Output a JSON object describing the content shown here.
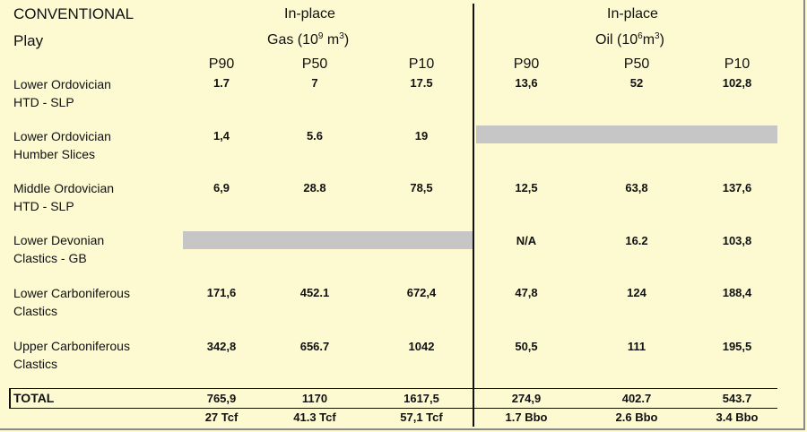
{
  "header": {
    "category": "CONVENTIONAL",
    "play_label": "Play",
    "gas_title": "In-place",
    "gas_unit_prefix": "Gas (10",
    "gas_unit_exp": "9",
    "gas_unit_mid": " m",
    "gas_unit_exp2": "3",
    "gas_unit_suffix": ")",
    "oil_title": "In-place",
    "oil_unit_prefix": "Oil (10",
    "oil_unit_exp": "6",
    "oil_unit_mid": "m",
    "oil_unit_exp2": "3",
    "oil_unit_suffix": ")",
    "columns": [
      "P90",
      "P50",
      "P10",
      "P90",
      "P50",
      "P10"
    ]
  },
  "rows": [
    {
      "line1": "Lower Ordovician",
      "line2": "HTD - SLP",
      "gas": [
        "1.7",
        "7",
        "17.5"
      ],
      "oil": [
        "13,6",
        "52",
        "102,8"
      ]
    },
    {
      "line1": "Lower Ordovician",
      "line2": "Humber Slices",
      "gas": [
        "1,4",
        "5.6",
        "19"
      ],
      "oil": null
    },
    {
      "line1": "Middle Ordovician",
      "line2": "HTD - SLP",
      "gas": [
        "6,9",
        "28.8",
        "78,5"
      ],
      "oil": [
        "12,5",
        "63,8",
        "137,6"
      ]
    },
    {
      "line1": "Lower Devonian",
      "line2": "Clastics - GB",
      "gas": null,
      "oil": [
        "N/A",
        "16.2",
        "103,8"
      ]
    },
    {
      "line1": "Lower Carboniferous",
      "line2": "Clastics",
      "gas": [
        "171,6",
        "452.1",
        "672,4"
      ],
      "oil": [
        "47,8",
        "124",
        "188,4"
      ]
    },
    {
      "line1": "Upper Carboniferous",
      "line2": "Clastics",
      "gas": [
        "342,8",
        "656.7",
        "1042"
      ],
      "oil": [
        "50,5",
        "111",
        "195,5"
      ]
    }
  ],
  "total": {
    "label": "TOTAL",
    "gas": [
      "765,9",
      "1170",
      "1617,5"
    ],
    "oil": [
      "274,9",
      "402.7",
      "543.7"
    ],
    "gas_equiv": [
      "27 Tcf",
      "41.3 Tcf",
      "57,1 Tcf"
    ],
    "oil_equiv": [
      "1.7 Bbo",
      "2.6 Bbo",
      "3.4 Bbo"
    ]
  },
  "colors": {
    "background": "#fdf9d0",
    "na_fill": "#c6c6c6",
    "rule": "#111111"
  }
}
